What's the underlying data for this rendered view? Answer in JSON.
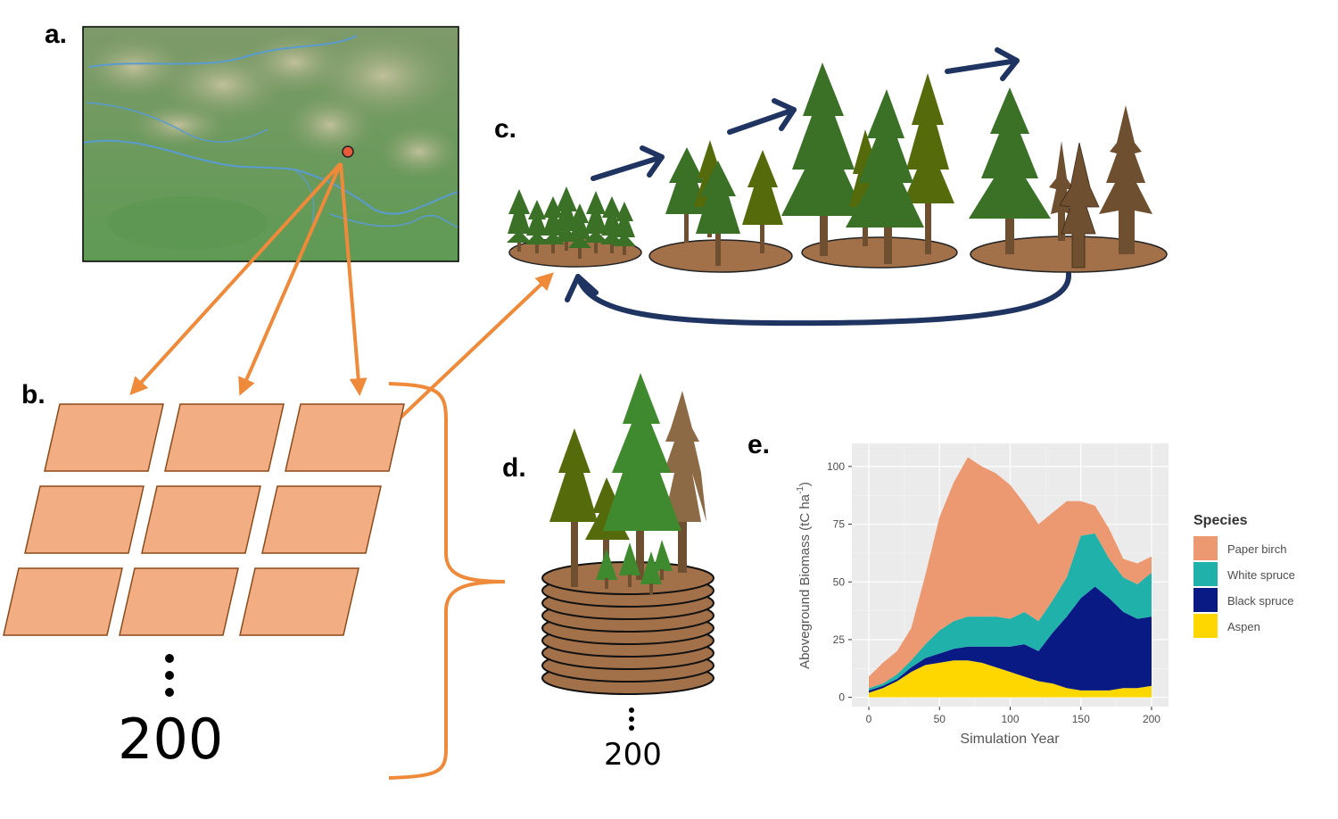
{
  "panels": {
    "a": "a.",
    "b": "b.",
    "c": "c.",
    "d": "d.",
    "e": "e."
  },
  "replicates": {
    "big": "200",
    "small": "200"
  },
  "colors": {
    "arrow_orange": "#ee8a3a",
    "arrow_navy": "#1f3461",
    "plot_fill": "#f2ad82",
    "plot_edge": "#8a4a1a",
    "stand_soil": "#a2714a",
    "tree_green": "#3a7126",
    "tree_olive": "#556b0b",
    "tree_dead": "#6e4f30"
  },
  "chart_data": {
    "type": "area",
    "stacked": true,
    "xlabel": "Simulation Year",
    "ylabel": "Aboveground Biomass (tC ha",
    "ylabel_sup": "-1",
    "ylabel_close": ")",
    "xlim": [
      0,
      200
    ],
    "ylim": [
      0,
      105
    ],
    "xticks": [
      0,
      50,
      100,
      150,
      200
    ],
    "yticks": [
      0,
      25,
      50,
      75,
      100
    ],
    "grid": true,
    "legend_title": "Species",
    "legend_position": "right",
    "x": [
      0,
      10,
      20,
      30,
      40,
      50,
      60,
      70,
      80,
      90,
      100,
      110,
      120,
      130,
      140,
      150,
      160,
      170,
      180,
      190,
      200
    ],
    "series": [
      {
        "name": "Aspen",
        "color": "#ffd700",
        "values": [
          2,
          4,
          7,
          11,
          14,
          15,
          16,
          16,
          15,
          13,
          11,
          9,
          7,
          6,
          4,
          3,
          3,
          3,
          4,
          4,
          5
        ]
      },
      {
        "name": "Black spruce",
        "color": "#0a1a85",
        "values": [
          1,
          1,
          1,
          2,
          3,
          4,
          5,
          6,
          7,
          9,
          11,
          14,
          13,
          22,
          31,
          40,
          45,
          40,
          33,
          30,
          30
        ]
      },
      {
        "name": "White spruce",
        "color": "#20b2aa",
        "values": [
          1,
          1,
          2,
          3,
          6,
          10,
          12,
          13,
          13,
          13,
          12,
          14,
          13,
          14,
          17,
          27,
          23,
          17,
          15,
          15,
          19
        ]
      },
      {
        "name": "Paper birch",
        "color": "#ec9870",
        "values": [
          5,
          9,
          10,
          14,
          30,
          49,
          60,
          69,
          65,
          62,
          58,
          47,
          42,
          38,
          33,
          15,
          12,
          13,
          8,
          9,
          7
        ]
      }
    ],
    "legend_order": [
      "Paper birch",
      "White spruce",
      "Black spruce",
      "Aspen"
    ]
  }
}
